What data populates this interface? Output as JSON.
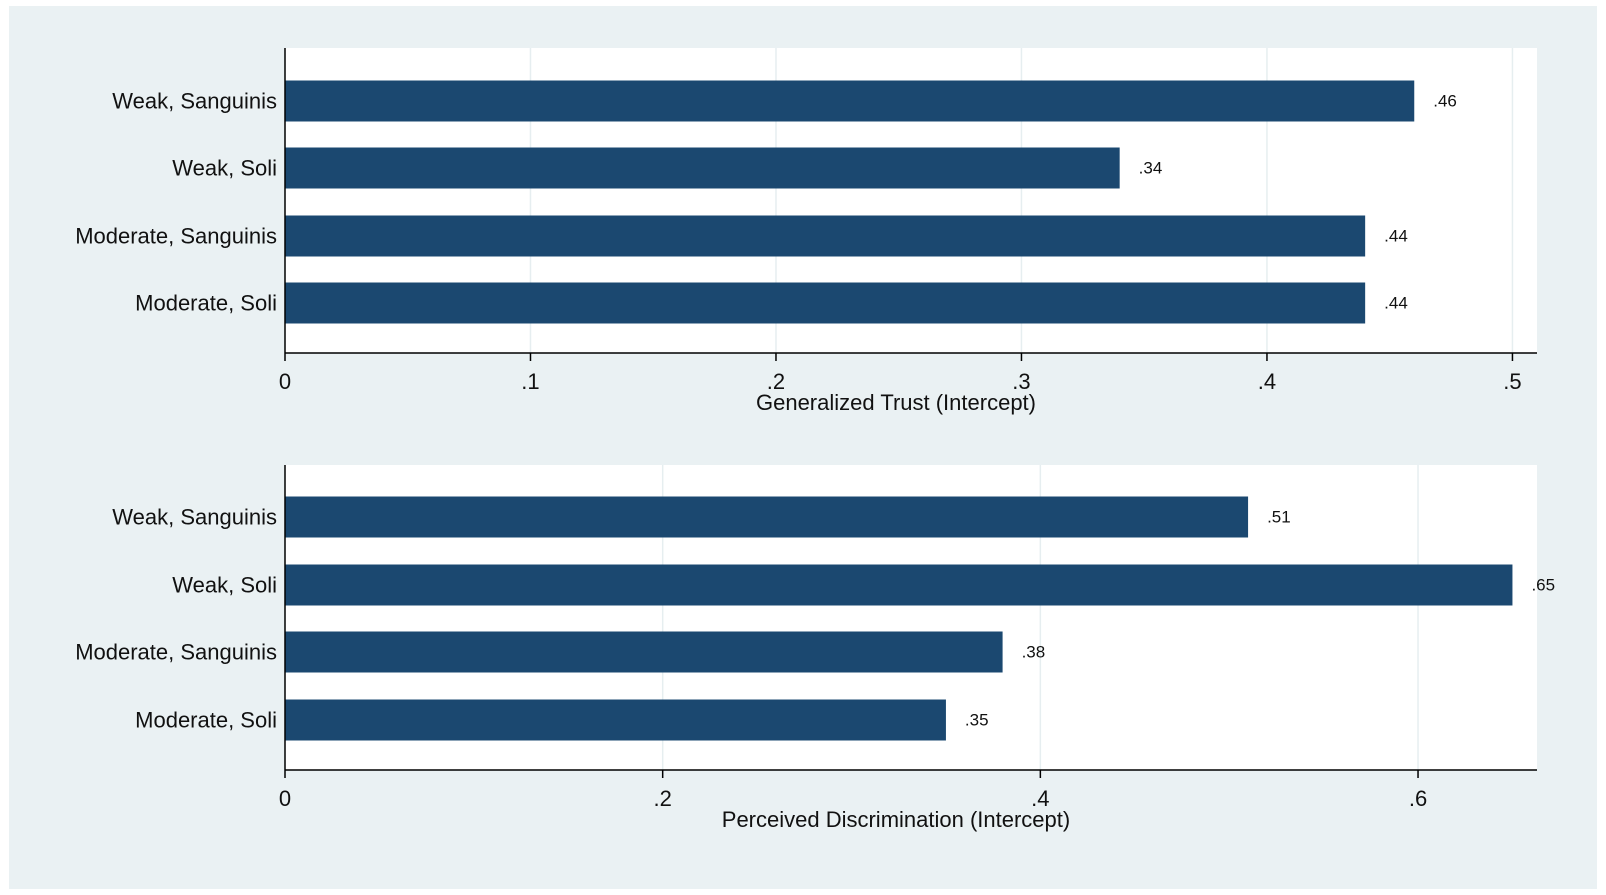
{
  "colors": {
    "outer_background": "#eaf1f3",
    "plot_background": "#ffffff",
    "bar": "#1b4870",
    "gridline": "#e6eef0",
    "axis": "#000000"
  },
  "chart_data": [
    {
      "type": "bar",
      "orientation": "horizontal",
      "categories": [
        "Weak, Sanguinis",
        "Weak, Soli",
        "Moderate, Sanguinis",
        "Moderate, Soli"
      ],
      "values": [
        0.46,
        0.34,
        0.44,
        0.44
      ],
      "value_labels": [
        ".46",
        ".34",
        ".44",
        ".44"
      ],
      "xlabel": "Generalized Trust (Intercept)",
      "xlim": [
        0,
        0.51
      ],
      "xticks": [
        0,
        0.1,
        0.2,
        0.3,
        0.4,
        0.5
      ],
      "xtick_labels": [
        "0",
        ".1",
        ".2",
        ".3",
        ".4",
        ".5"
      ],
      "grid": true
    },
    {
      "type": "bar",
      "orientation": "horizontal",
      "categories": [
        "Weak, Sanguinis",
        "Weak, Soli",
        "Moderate, Sanguinis",
        "Moderate, Soli"
      ],
      "values": [
        0.51,
        0.65,
        0.38,
        0.35
      ],
      "value_labels": [
        ".51",
        ".65",
        ".38",
        ".35"
      ],
      "xlabel": "Perceived Discrimination (Intercept)",
      "xlim": [
        0,
        0.663
      ],
      "xticks": [
        0,
        0.2,
        0.4,
        0.6
      ],
      "xtick_labels": [
        "0",
        ".2",
        ".4",
        ".6"
      ],
      "grid": true
    }
  ]
}
